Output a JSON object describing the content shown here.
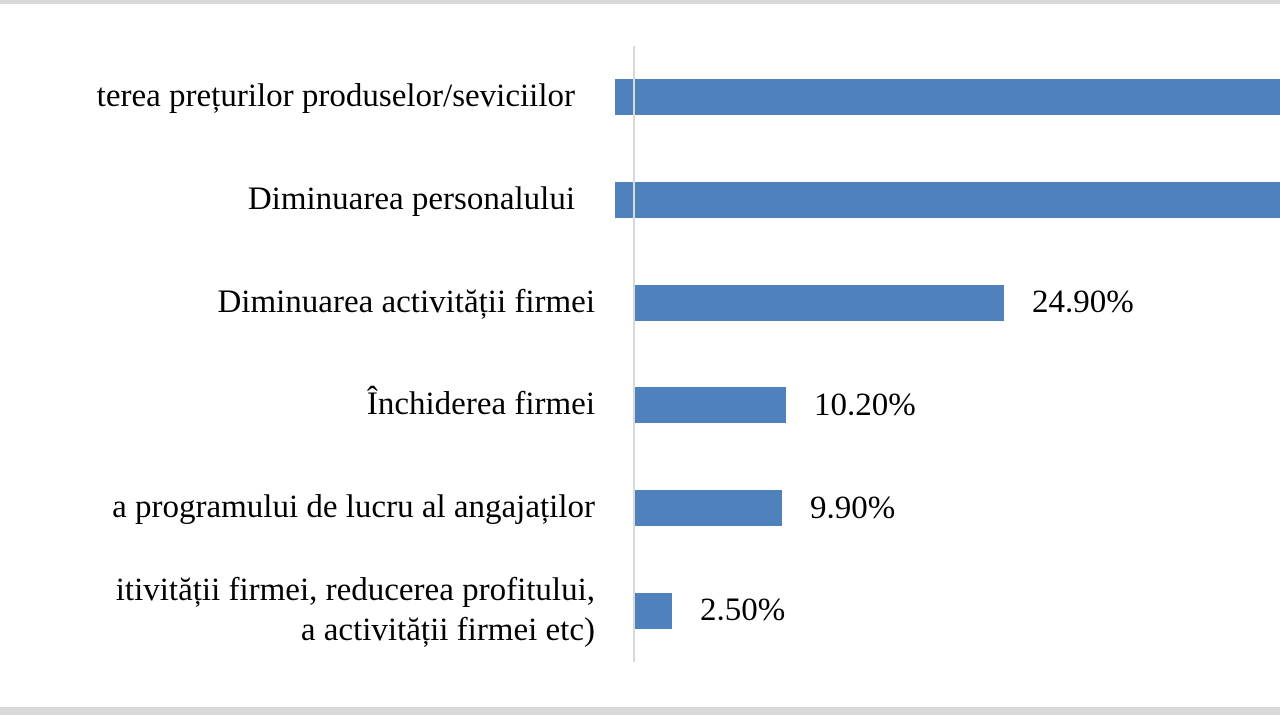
{
  "page": {
    "background_color": "#ffffff",
    "top_edge_strip_color": "#d9d9d9",
    "bottom_edge_strip_color": "#d9d9d9"
  },
  "chart_data": {
    "type": "bar",
    "orientation": "horizontal",
    "title": "",
    "xlabel": "",
    "ylabel": "",
    "legend": false,
    "gridlines": false,
    "bar_color": "#4f81bd",
    "axis_line_color": "#d9d9d9",
    "categories": [
      "terea prețurilor produselor/seviciilor",
      "Diminuarea personalului",
      "Diminuarea activității firmei",
      "Închiderea firmei",
      "a programului de lucru al angajaților",
      "itivității firmei, reducerea profitului,\na activității firmei etc)"
    ],
    "values": [
      null,
      null,
      24.9,
      10.2,
      9.9,
      2.5
    ],
    "value_labels": [
      "",
      "",
      "24.90%",
      "10.20%",
      "9.90%",
      "2.50%"
    ],
    "bars_clipped_at_right_edge": [
      true,
      true,
      false,
      false,
      false,
      false
    ],
    "visible_x_range_percent": [
      0,
      43.6
    ]
  }
}
